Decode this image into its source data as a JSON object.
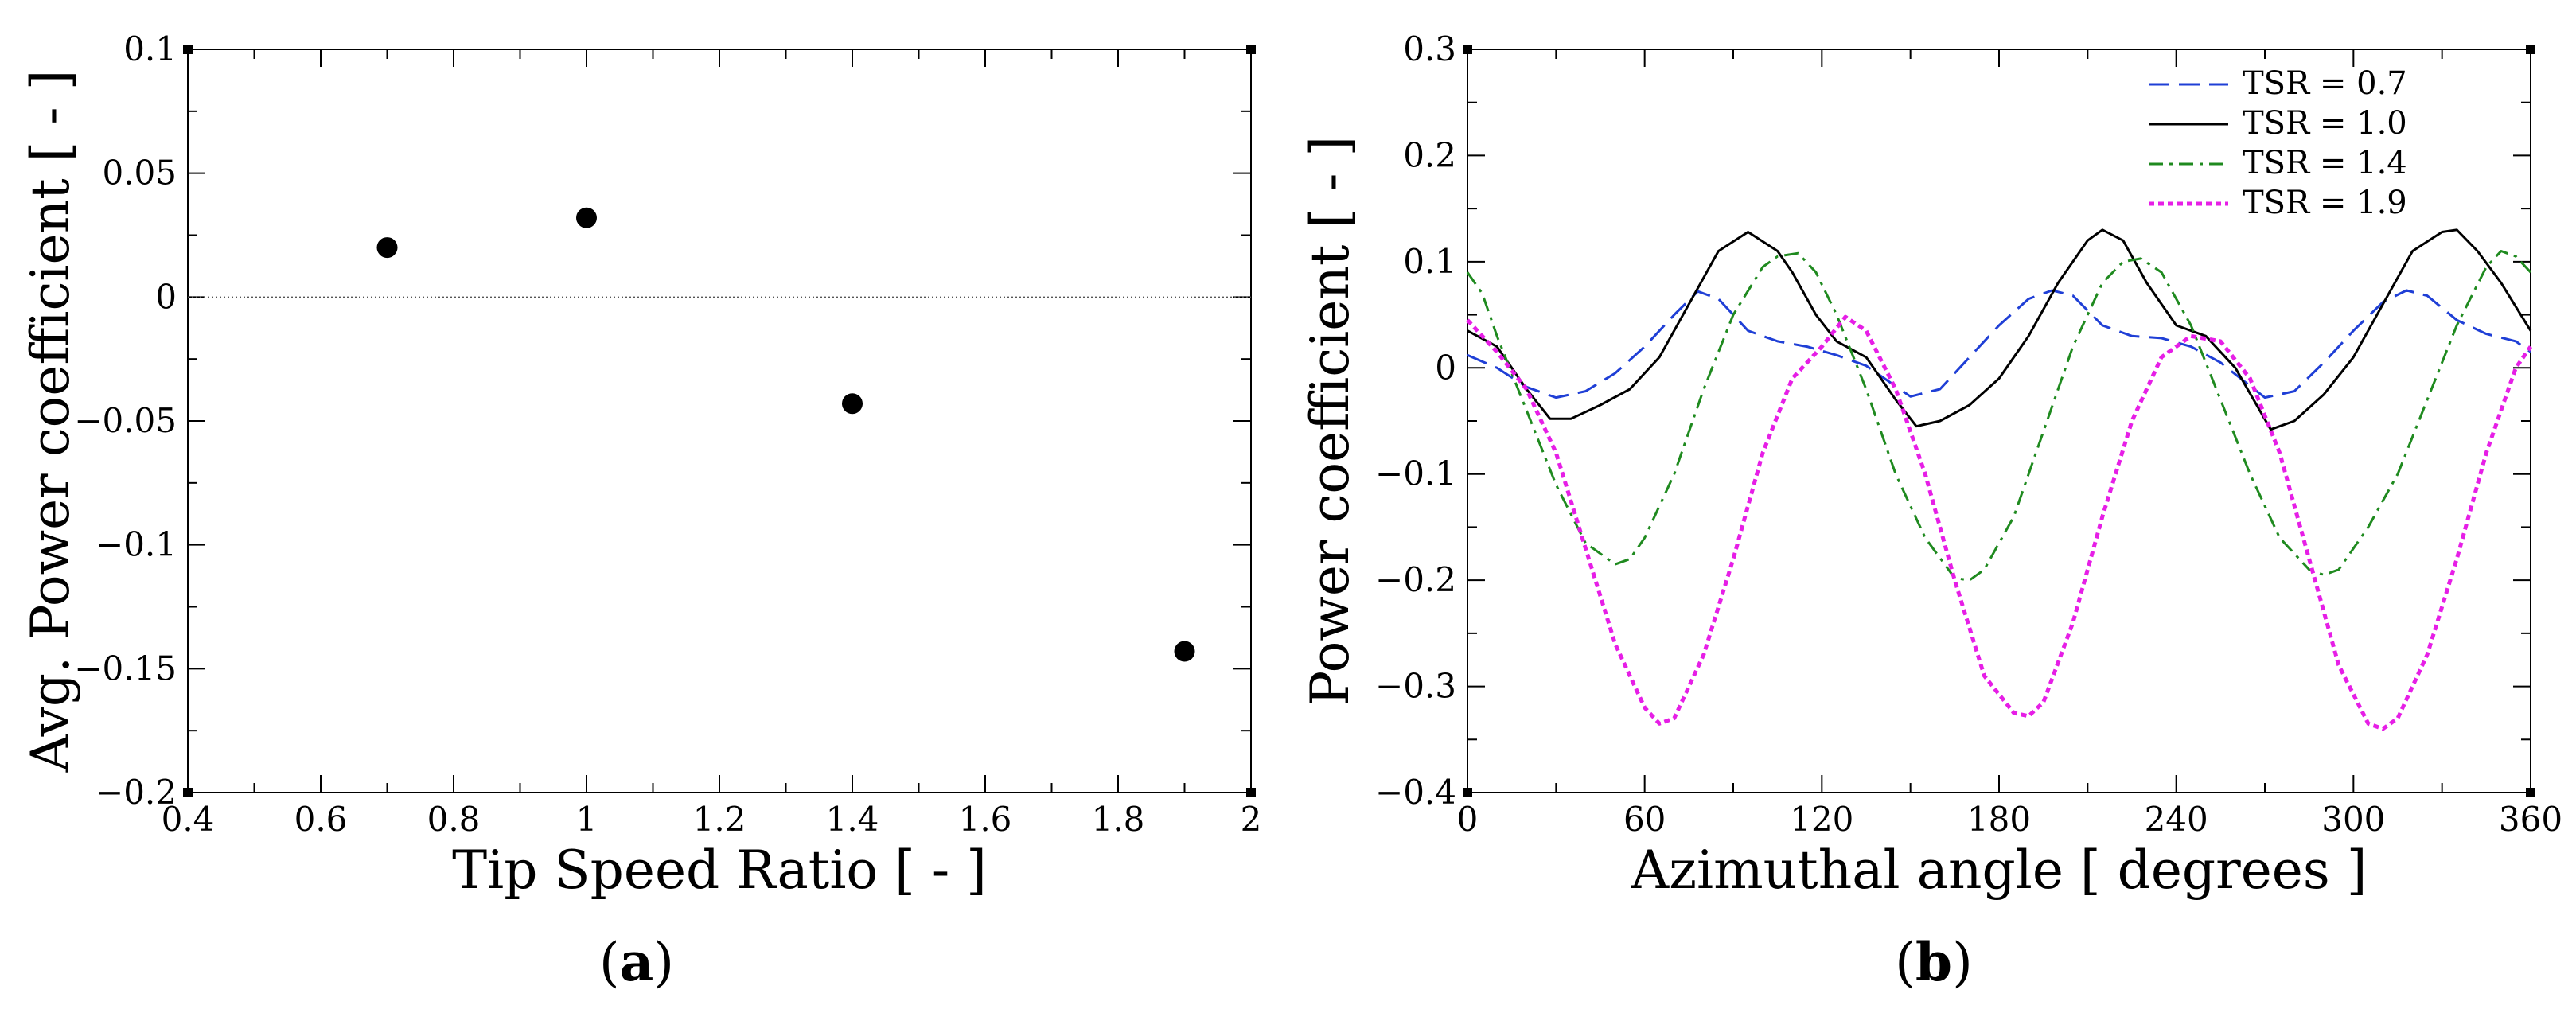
{
  "chart_data": [
    {
      "type": "scatter",
      "panel_label": "a",
      "xlabel": "Tip Speed Ratio [ - ]",
      "ylabel": "Avg. Power coefficient [ - ]",
      "xlim": [
        0.4,
        2
      ],
      "ylim": [
        -0.2,
        0.1
      ],
      "x_ticks": [
        0.4,
        0.6,
        0.8,
        1,
        1.2,
        1.4,
        1.6,
        1.8,
        2
      ],
      "x_tick_labels": [
        "0.4",
        "0.6",
        "0.8",
        "1",
        "1.2",
        "1.4",
        "1.6",
        "1.8",
        "2"
      ],
      "y_ticks": [
        0.1,
        0.05,
        0,
        -0.05,
        -0.1,
        -0.15,
        -0.2
      ],
      "y_tick_labels": [
        "0.1",
        "0.05",
        "0",
        "−0.05",
        "−0.1",
        "−0.15",
        "−0.2"
      ],
      "zero_line": true,
      "grid": false,
      "points": [
        {
          "x": 0.7,
          "y": 0.02
        },
        {
          "x": 1.0,
          "y": 0.032
        },
        {
          "x": 1.4,
          "y": -0.043
        },
        {
          "x": 1.9,
          "y": -0.143
        }
      ],
      "marker_color": "#000000"
    },
    {
      "type": "line",
      "panel_label": "b",
      "xlabel": "Azimuthal angle [ degrees ]",
      "ylabel": "Power coefficient [ - ]",
      "xlim": [
        0,
        360
      ],
      "ylim": [
        -0.4,
        0.3
      ],
      "x_ticks": [
        0,
        60,
        120,
        180,
        240,
        300,
        360
      ],
      "x_tick_labels": [
        "0",
        "60",
        "120",
        "180",
        "240",
        "300",
        "360"
      ],
      "y_ticks": [
        0.3,
        0.2,
        0.1,
        0,
        -0.1,
        -0.2,
        -0.3,
        -0.4
      ],
      "y_tick_labels": [
        "0.3",
        "0.2",
        "0.1",
        "0",
        "−0.1",
        "−0.2",
        "−0.3",
        "−0.4"
      ],
      "grid": false,
      "legend_position": "top-right",
      "series": [
        {
          "name": "TSR = 0.7",
          "color": "#1f3fd6",
          "style": "dashed",
          "x": [
            0,
            10,
            20,
            30,
            40,
            50,
            60,
            70,
            78,
            85,
            95,
            105,
            115,
            125,
            135,
            150,
            160,
            170,
            180,
            190,
            198,
            205,
            215,
            225,
            235,
            245,
            255,
            270,
            280,
            290,
            300,
            310,
            318,
            325,
            335,
            345,
            355,
            360
          ],
          "y": [
            0.012,
            0.0,
            -0.018,
            -0.028,
            -0.022,
            -0.005,
            0.02,
            0.05,
            0.072,
            0.065,
            0.035,
            0.025,
            0.02,
            0.012,
            0.002,
            -0.027,
            -0.02,
            0.01,
            0.04,
            0.065,
            0.073,
            0.068,
            0.04,
            0.03,
            0.028,
            0.02,
            0.005,
            -0.028,
            -0.022,
            0.005,
            0.035,
            0.062,
            0.073,
            0.068,
            0.045,
            0.032,
            0.025,
            0.015
          ]
        },
        {
          "name": "TSR = 1.0",
          "color": "#000000",
          "style": "solid",
          "x": [
            0,
            10,
            20,
            28,
            35,
            45,
            55,
            65,
            75,
            85,
            95,
            105,
            110,
            118,
            125,
            135,
            145,
            152,
            160,
            170,
            180,
            190,
            200,
            210,
            215,
            222,
            230,
            240,
            250,
            260,
            272,
            280,
            290,
            300,
            310,
            320,
            330,
            335,
            342,
            350,
            360
          ],
          "y": [
            0.035,
            0.02,
            -0.02,
            -0.048,
            -0.048,
            -0.035,
            -0.02,
            0.01,
            0.06,
            0.11,
            0.128,
            0.11,
            0.09,
            0.05,
            0.025,
            0.01,
            -0.03,
            -0.055,
            -0.05,
            -0.035,
            -0.01,
            0.03,
            0.08,
            0.12,
            0.13,
            0.12,
            0.08,
            0.04,
            0.03,
            0.0,
            -0.058,
            -0.05,
            -0.025,
            0.01,
            0.06,
            0.11,
            0.128,
            0.13,
            0.11,
            0.08,
            0.035
          ]
        },
        {
          "name": "TSR = 1.4",
          "color": "#1f8a1f",
          "style": "dashdot",
          "x": [
            0,
            5,
            10,
            20,
            30,
            40,
            50,
            55,
            60,
            70,
            80,
            90,
            100,
            105,
            112,
            118,
            125,
            135,
            145,
            155,
            165,
            170,
            175,
            185,
            195,
            205,
            215,
            222,
            228,
            235,
            245,
            255,
            265,
            275,
            285,
            290,
            295,
            305,
            315,
            325,
            335,
            345,
            350,
            355,
            360
          ],
          "y": [
            0.09,
            0.07,
            0.03,
            -0.04,
            -0.11,
            -0.165,
            -0.185,
            -0.18,
            -0.16,
            -0.1,
            -0.02,
            0.05,
            0.095,
            0.105,
            0.108,
            0.09,
            0.05,
            -0.02,
            -0.1,
            -0.16,
            -0.198,
            -0.2,
            -0.19,
            -0.14,
            -0.06,
            0.02,
            0.08,
            0.1,
            0.103,
            0.09,
            0.04,
            -0.03,
            -0.1,
            -0.16,
            -0.19,
            -0.195,
            -0.19,
            -0.15,
            -0.1,
            -0.03,
            0.04,
            0.095,
            0.11,
            0.105,
            0.09
          ]
        },
        {
          "name": "TSR = 1.9",
          "color": "#e61ee6",
          "style": "dotted",
          "x": [
            0,
            10,
            20,
            30,
            40,
            50,
            60,
            65,
            70,
            80,
            90,
            100,
            110,
            120,
            128,
            135,
            145,
            155,
            165,
            175,
            185,
            190,
            195,
            205,
            215,
            225,
            235,
            245,
            255,
            265,
            275,
            285,
            295,
            305,
            310,
            315,
            325,
            335,
            345,
            355,
            360
          ],
          "y": [
            0.045,
            0.015,
            -0.02,
            -0.08,
            -0.17,
            -0.26,
            -0.32,
            -0.335,
            -0.33,
            -0.27,
            -0.18,
            -0.08,
            -0.01,
            0.02,
            0.048,
            0.035,
            -0.02,
            -0.1,
            -0.2,
            -0.29,
            -0.325,
            -0.328,
            -0.315,
            -0.24,
            -0.14,
            -0.05,
            0.01,
            0.03,
            0.025,
            -0.01,
            -0.08,
            -0.18,
            -0.28,
            -0.335,
            -0.34,
            -0.33,
            -0.27,
            -0.18,
            -0.08,
            0.0,
            0.02
          ]
        }
      ]
    }
  ]
}
